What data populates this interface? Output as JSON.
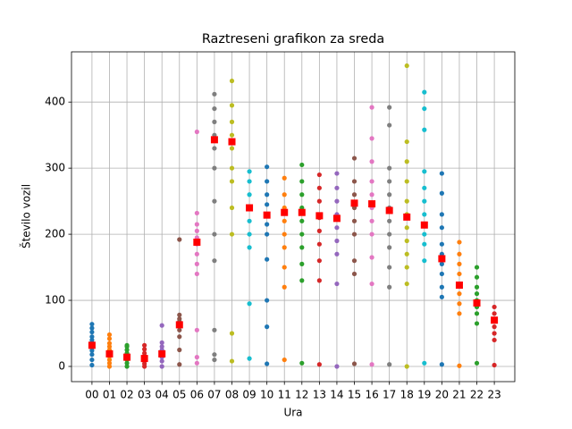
{
  "chart_data": {
    "type": "strip",
    "title": "Raztreseni grafikon za sreda",
    "x_label": "Ura",
    "y_label": "Število vozil",
    "categories": [
      "00",
      "01",
      "02",
      "03",
      "04",
      "05",
      "06",
      "07",
      "08",
      "09",
      "10",
      "11",
      "12",
      "13",
      "14",
      "15",
      "16",
      "17",
      "18",
      "19",
      "20",
      "21",
      "22",
      "23"
    ],
    "colors": [
      "#1f77b4",
      "#ff7f0e",
      "#2ca02c",
      "#d62728",
      "#9467bd",
      "#8c564b",
      "#e377c2",
      "#7f7f7f",
      "#bcbd22",
      "#17becf",
      "#1f77b4",
      "#ff7f0e",
      "#2ca02c",
      "#d62728",
      "#9467bd",
      "#8c564b",
      "#e377c2",
      "#7f7f7f",
      "#bcbd22",
      "#17becf",
      "#1f77b4",
      "#ff7f0e",
      "#2ca02c",
      "#d62728"
    ],
    "values": [
      [
        2,
        10,
        18,
        24,
        28,
        32,
        36,
        40,
        45,
        52,
        58,
        64
      ],
      [
        0,
        5,
        10,
        15,
        20,
        25,
        30,
        35,
        42,
        48
      ],
      [
        0,
        5,
        10,
        15,
        20,
        25,
        30,
        32
      ],
      [
        0,
        4,
        8,
        12,
        16,
        20,
        26,
        32
      ],
      [
        0,
        8,
        14,
        20,
        25,
        30,
        36,
        62
      ],
      [
        3,
        25,
        45,
        55,
        62,
        68,
        72,
        78,
        192
      ],
      [
        5,
        14,
        55,
        140,
        155,
        170,
        185,
        195,
        205,
        215,
        232,
        355
      ],
      [
        10,
        18,
        55,
        160,
        200,
        250,
        300,
        330,
        350,
        370,
        390,
        412
      ],
      [
        8,
        50,
        200,
        240,
        280,
        300,
        330,
        350,
        370,
        395,
        432
      ],
      [
        12,
        95,
        180,
        200,
        220,
        240,
        260,
        280,
        295
      ],
      [
        4,
        60,
        100,
        162,
        200,
        215,
        230,
        245,
        260,
        280,
        302
      ],
      [
        10,
        120,
        150,
        180,
        200,
        220,
        240,
        260,
        285
      ],
      [
        5,
        130,
        155,
        180,
        200,
        220,
        240,
        260,
        280,
        305
      ],
      [
        3,
        130,
        160,
        185,
        205,
        225,
        250,
        270,
        290
      ],
      [
        0,
        125,
        170,
        190,
        210,
        230,
        250,
        270,
        292
      ],
      [
        4,
        140,
        160,
        200,
        220,
        240,
        260,
        280,
        315
      ],
      [
        3,
        125,
        165,
        200,
        220,
        240,
        260,
        280,
        310,
        345,
        392
      ],
      [
        3,
        120,
        150,
        180,
        200,
        220,
        240,
        260,
        280,
        300,
        365,
        392
      ],
      [
        0,
        125,
        150,
        170,
        190,
        210,
        230,
        250,
        280,
        310,
        340,
        455
      ],
      [
        5,
        160,
        185,
        200,
        215,
        230,
        250,
        270,
        295,
        358,
        390,
        415
      ],
      [
        3,
        105,
        120,
        140,
        155,
        170,
        185,
        210,
        230,
        262,
        292
      ],
      [
        1,
        80,
        95,
        110,
        125,
        140,
        155,
        170,
        188
      ],
      [
        5,
        65,
        80,
        90,
        100,
        110,
        120,
        135,
        150
      ],
      [
        2,
        40,
        50,
        60,
        70,
        80,
        90
      ]
    ],
    "means": [
      32,
      19,
      14,
      12,
      19,
      63,
      188,
      343,
      340,
      240,
      229,
      233,
      233,
      228,
      224,
      247,
      246,
      236,
      226,
      214,
      163,
      123,
      96,
      70
    ],
    "mean_color": "#ff0000",
    "ylim": [
      -23,
      476
    ],
    "yticks": [
      0,
      100,
      200,
      300,
      400
    ],
    "grid": true
  }
}
